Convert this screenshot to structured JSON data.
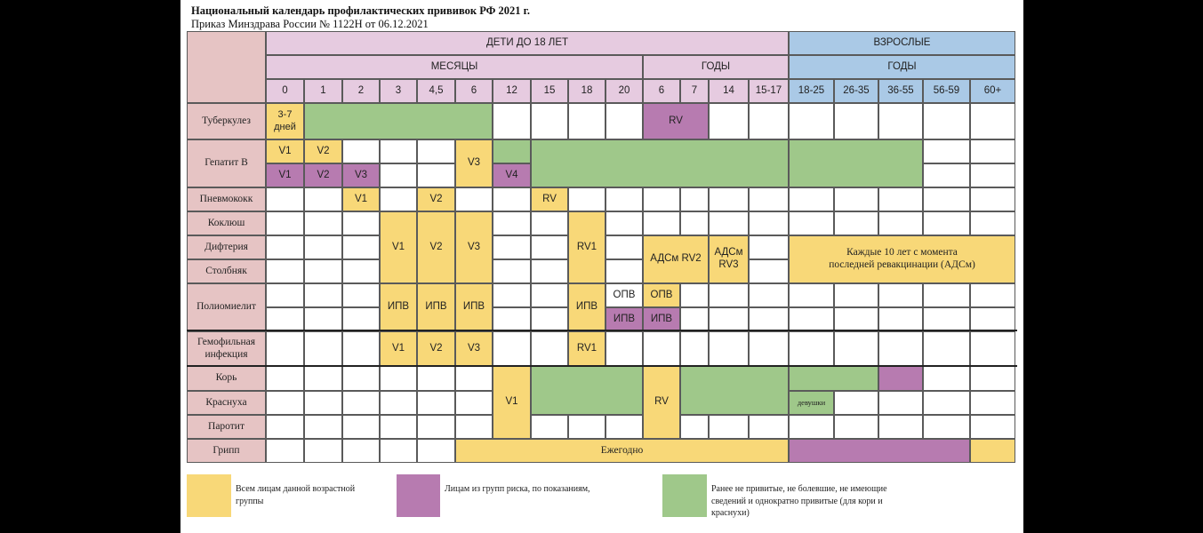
{
  "title": {
    "line1": "Национальный календарь профилактических прививок РФ 2021 г.",
    "line2": "Приказ Минздрава России № 1122Н от 06.12.2021"
  },
  "headers": {
    "children": "ДЕТИ ДО 18 ЛЕТ",
    "adults": "ВЗРОСЛЫЕ",
    "months": "МЕСЯЦЫ",
    "years_children": "ГОДЫ",
    "years_adults": "ГОДЫ"
  },
  "age_columns": [
    "0",
    "1",
    "2",
    "3",
    "4,5",
    "6",
    "12",
    "15",
    "18",
    "20",
    "6",
    "7",
    "14",
    "15-17",
    "18-25",
    "26-35",
    "36-55",
    "56-59",
    "60+"
  ],
  "rows": [
    "Туберкулез",
    "Гепатит В",
    "Пневмококк",
    "Коклюш",
    "Дифтерия",
    "Столбняк",
    "Полиомиелит",
    "Гемофильная инфекция",
    "Корь",
    "Краснуха",
    "Паротит",
    "Грипп"
  ],
  "cells": {
    "tb_newborn": "3-7 дней",
    "tb_rv": "RV",
    "hb_v1": "V1",
    "hb_v2": "V2",
    "hb_v3": "V3",
    "hb_risk_v1": "V1",
    "hb_risk_v2": "V2",
    "hb_risk_v3": "V3",
    "hb_risk_v4": "V4",
    "pn_v1": "V1",
    "pn_v2": "V2",
    "pn_rv": "RV",
    "dtp_v1": "V1",
    "dtp_v2": "V2",
    "dtp_v3": "V3",
    "dtp_rv1": "RV1",
    "ads_rv2": "АДСм RV2",
    "ads_rv3": "АДСм RV3",
    "adult_ads": "Каждые 10 лет с момента последней ревакцинации (АДСм)",
    "polio_1": "ИПВ",
    "polio_2": "ИПВ",
    "polio_3": "ИПВ",
    "polio_4": "ИПВ",
    "polio_opv_20": "ОПВ",
    "polio_ipv_20": "ИПВ",
    "polio_opv_6": "ОПВ",
    "polio_ipv_6": "ИПВ",
    "hib_v1": "V1",
    "hib_v2": "V2",
    "hib_v3": "V3",
    "hib_rv1": "RV1",
    "mmr_v1": "V1",
    "mmr_rv": "RV",
    "rubella_girls": "девушки",
    "flu": "Ежегодно"
  },
  "legend": {
    "yellow": "Всем лицам данной возрастной группы",
    "purple": "Лицам из групп риска, по показаниям,",
    "green": "Ранее не привитые, не болевшие, не имеющие сведений и однократно привитые (для кори и краснухи)"
  },
  "colors": {
    "yellow": "#f8d878",
    "purple": "#b77bb0",
    "green": "#9fc88a",
    "pink": "#e6c4c4",
    "lilac": "#e6cbe0",
    "blue": "#aac9e6"
  }
}
